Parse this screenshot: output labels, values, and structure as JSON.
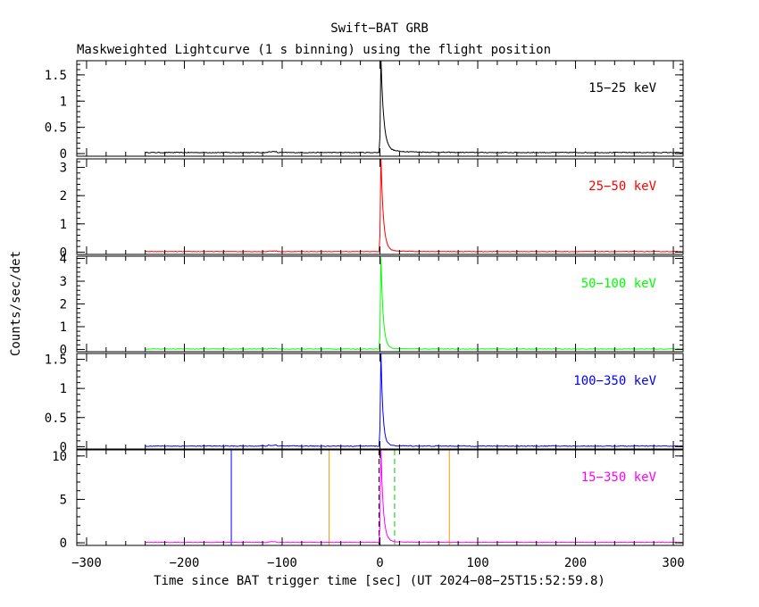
{
  "chart_data": {
    "type": "line",
    "title": "Swift−BAT GRB",
    "subtitle": "Maskweighted Lightcurve (1 s binning) using the flight position",
    "xlabel": "Time since BAT trigger time [sec] (UT 2024−08−25T15:52:59.8)",
    "ylabel": "Counts/sec/det",
    "xlim": [
      -310,
      310
    ],
    "xticks": [
      -300,
      -200,
      -100,
      0,
      100,
      200,
      300
    ],
    "xtick_labels": [
      "−300",
      "−200",
      "−100",
      "0",
      "100",
      "200",
      "300"
    ],
    "panels": [
      {
        "band": "15−25 keV",
        "color": "#000000",
        "ylim": [
          -0.05,
          1.77
        ],
        "yticks": [
          0,
          0.5,
          1,
          1.5
        ],
        "ytick_labels": [
          "0",
          "0.5",
          "1",
          "1.5"
        ],
        "data_range": [
          -240,
          310
        ],
        "baseline": 0.02,
        "peak_time": 1,
        "peak": 1.75,
        "decay": 2.8,
        "tail": 0.05,
        "tail_decay": 25,
        "noise": 0.008
      },
      {
        "band": "25−50 keV",
        "color": "#ff0000",
        "ylim": [
          -0.08,
          3.3
        ],
        "yticks": [
          0,
          1,
          2,
          3
        ],
        "ytick_labels": [
          "0",
          "1",
          "2",
          "3"
        ],
        "data_range": [
          -240,
          310
        ],
        "baseline": 0.02,
        "peak_time": 1,
        "peak": 3.3,
        "decay": 2.5,
        "tail": 0.04,
        "tail_decay": 20,
        "noise": 0.01
      },
      {
        "band": "50−100 keV",
        "color": "#00ff00",
        "ylim": [
          -0.1,
          4.1
        ],
        "yticks": [
          0,
          1,
          2,
          3,
          4
        ],
        "ytick_labels": [
          "0",
          "1",
          "2",
          "3",
          "4"
        ],
        "data_range": [
          -240,
          310
        ],
        "baseline": 0.02,
        "peak_time": 1,
        "peak": 4.0,
        "decay": 2.3,
        "tail": 0.03,
        "tail_decay": 18,
        "noise": 0.012
      },
      {
        "band": "100−350 keV",
        "color": "#0000ff",
        "ylim": [
          -0.04,
          1.6
        ],
        "yticks": [
          0,
          0.5,
          1,
          1.5
        ],
        "ytick_labels": [
          "0",
          "0.5",
          "1",
          "1.5"
        ],
        "data_range": [
          -240,
          310
        ],
        "baseline": 0.01,
        "peak_time": 1,
        "peak": 1.6,
        "decay": 2.0,
        "tail": 0.015,
        "tail_decay": 15,
        "noise": 0.007
      },
      {
        "band": "15−350 keV",
        "color": "#ff00ff",
        "ylim": [
          -0.3,
          10.7
        ],
        "yticks": [
          0,
          5,
          10
        ],
        "ytick_labels": [
          "0",
          "5",
          "10"
        ],
        "data_range": [
          -240,
          310
        ],
        "baseline": 0.05,
        "peak_time": 1,
        "peak": 10.7,
        "decay": 2.4,
        "tail": 0.12,
        "tail_decay": 22,
        "noise": 0.03,
        "markers": [
          {
            "name": "blue-marker",
            "x": -152,
            "color": "#0000ff",
            "style": "solid"
          },
          {
            "name": "orange-marker-left",
            "x": -52,
            "color": "#ff9900",
            "style": "solid"
          },
          {
            "name": "orange-marker-right",
            "x": 71,
            "color": "#ff9900",
            "style": "solid"
          },
          {
            "name": "green-dashed-marker",
            "x": 15,
            "color": "#00cc00",
            "style": "dashed"
          },
          {
            "name": "black-dashed-marker",
            "x": -1,
            "color": "#000000",
            "style": "dashed"
          }
        ]
      }
    ]
  }
}
